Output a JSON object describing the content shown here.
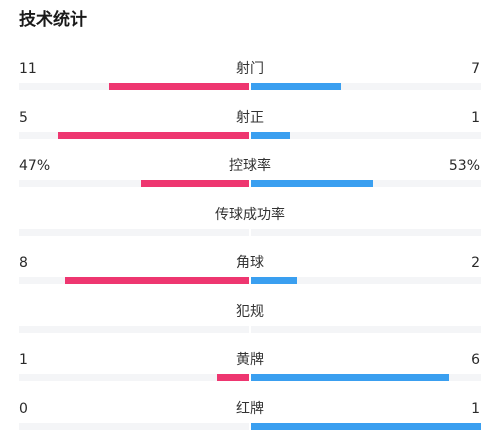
{
  "title": "技术统计",
  "colors": {
    "home": "#ee3670",
    "away": "#3a9ff0",
    "track": "#f4f5f7"
  },
  "stats": [
    {
      "label": "射门",
      "home": "11",
      "away": "7",
      "home_share": 0.61,
      "away_share": 0.39
    },
    {
      "label": "射正",
      "home": "5",
      "away": "1",
      "home_share": 0.83,
      "away_share": 0.17
    },
    {
      "label": "控球率",
      "home": "47%",
      "away": "53%",
      "home_share": 0.47,
      "away_share": 0.53
    },
    {
      "label": "传球成功率",
      "home": "",
      "away": "",
      "home_share": 0,
      "away_share": 0
    },
    {
      "label": "角球",
      "home": "8",
      "away": "2",
      "home_share": 0.8,
      "away_share": 0.2
    },
    {
      "label": "犯规",
      "home": "",
      "away": "",
      "home_share": 0,
      "away_share": 0
    },
    {
      "label": "黄牌",
      "home": "1",
      "away": "6",
      "home_share": 0.14,
      "away_share": 0.86
    },
    {
      "label": "红牌",
      "home": "0",
      "away": "1",
      "home_share": 0,
      "away_share": 1
    }
  ]
}
